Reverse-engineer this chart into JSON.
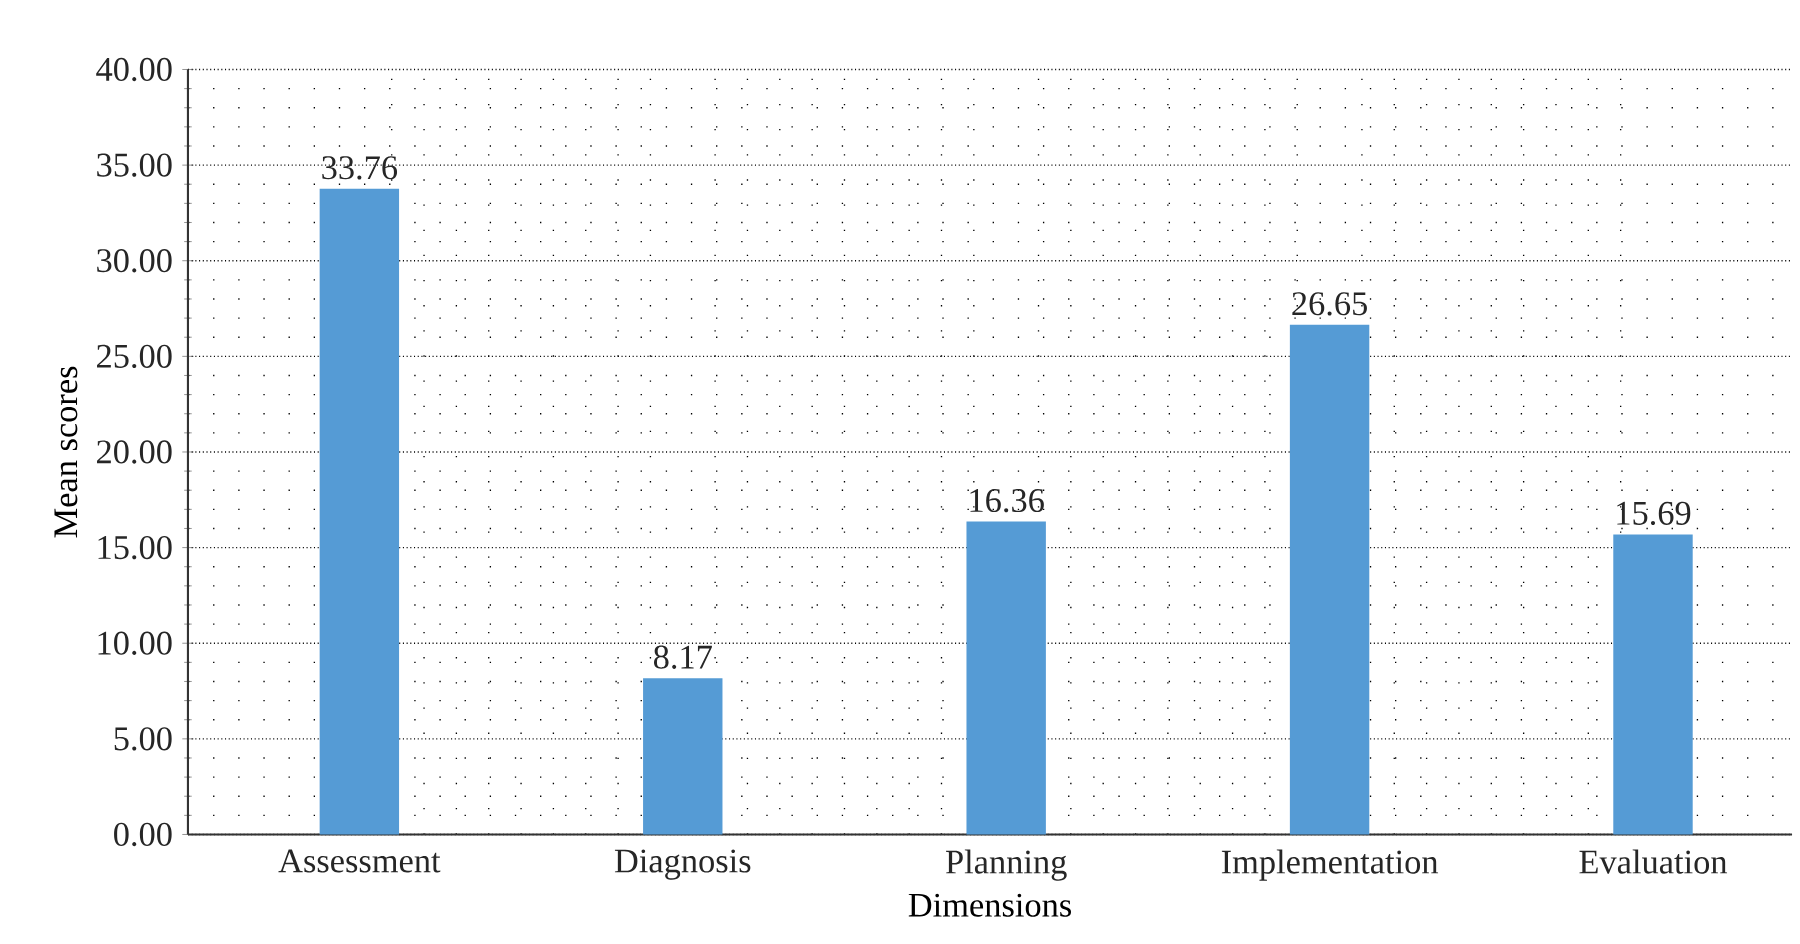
{
  "chart_data": {
    "type": "bar",
    "xlabel": "Dimensions",
    "ylabel": "Mean scores",
    "categories": [
      "Assessment",
      "Diagnosis",
      "Planning",
      "Implementation",
      "Evaluation"
    ],
    "values": [
      33.76,
      8.17,
      16.36,
      26.65,
      15.69
    ],
    "color": "#559bd5",
    "data_labels": true,
    "grid": true,
    "ylim": [
      0,
      40
    ],
    "yticks": [
      {
        "value": 0,
        "label": "0.00"
      },
      {
        "value": 5,
        "label": "5.00"
      },
      {
        "value": 10,
        "label": "10.00"
      },
      {
        "value": 15,
        "label": "15.00"
      },
      {
        "value": 20,
        "label": "20.00"
      },
      {
        "value": 25,
        "label": "25.00"
      },
      {
        "value": 30,
        "label": "30.00"
      },
      {
        "value": 35,
        "label": "35.00"
      },
      {
        "value": 40,
        "label": "40.00"
      }
    ]
  }
}
